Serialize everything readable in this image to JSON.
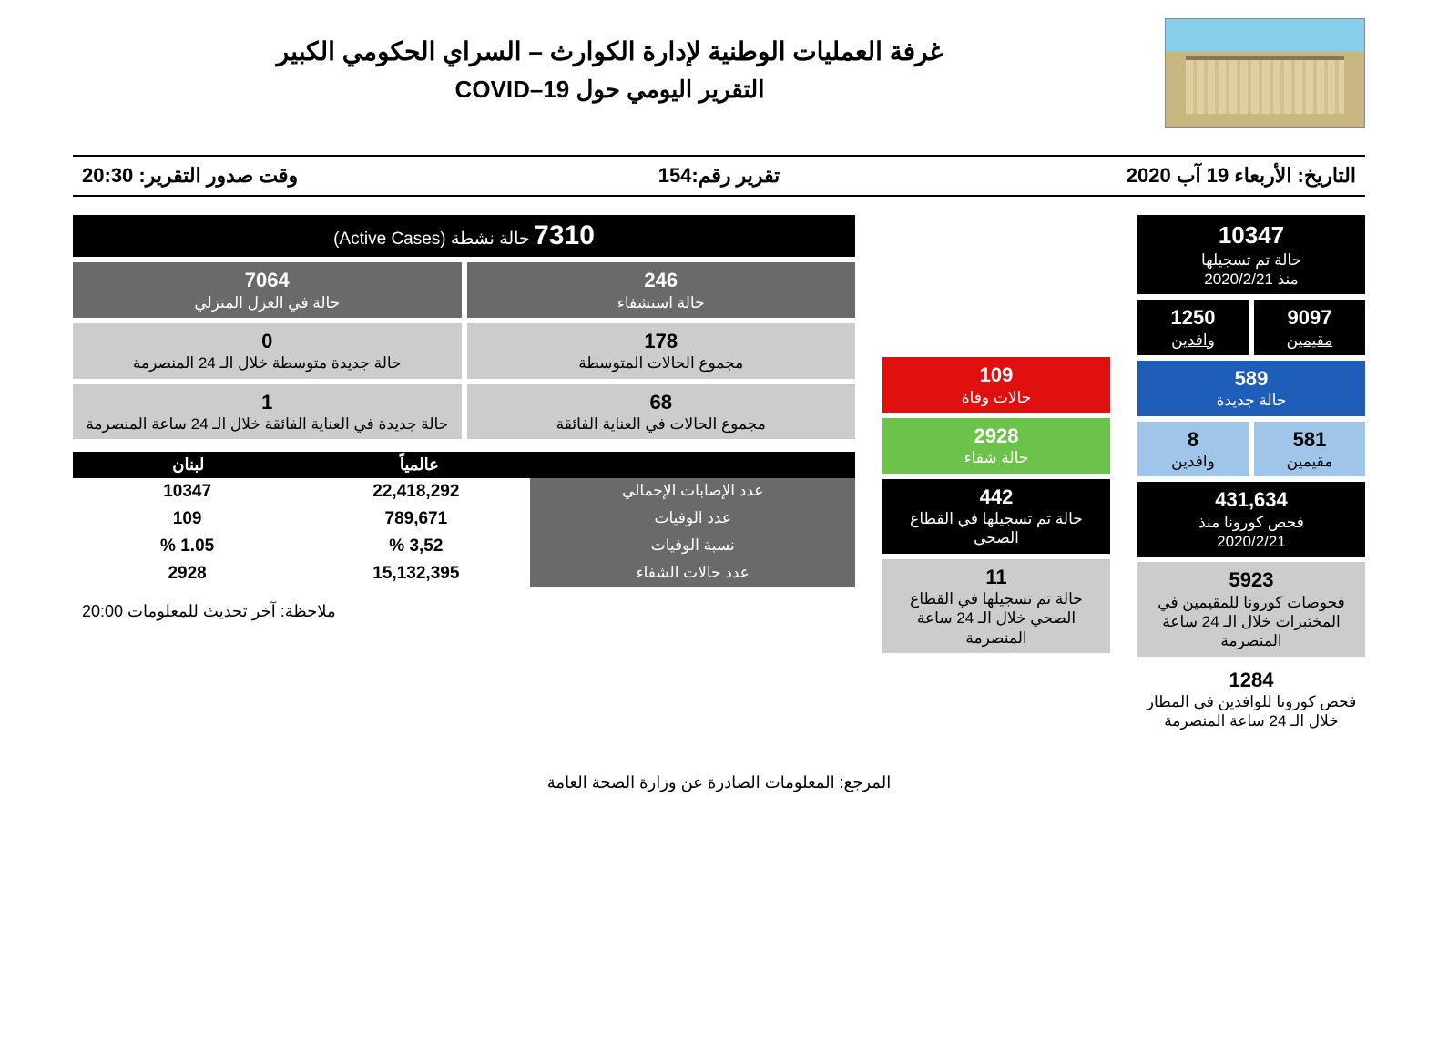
{
  "header": {
    "title1": "غرفة العمليات الوطنية لإدارة الكوارث – السراي الحكومي الكبير",
    "title2": "التقرير اليومي حول COVID–19"
  },
  "meta": {
    "date_label": "التاريخ: الأربعاء 19 آب 2020",
    "report_no": "تقرير رقم:154",
    "issue_time": "وقت صدور التقرير: 20:30"
  },
  "right_col": {
    "total": {
      "value": "10347",
      "label1": "حالة تم تسجيلها",
      "label2": "منذ 2020/2/21"
    },
    "res_incoming": {
      "residents_val": "9097",
      "residents_lbl": "مقيمين",
      "incoming_val": "1250",
      "incoming_lbl": "وافدين"
    },
    "new_cases": {
      "value": "589",
      "label": "حالة جديدة"
    },
    "new_split": {
      "residents_val": "581",
      "residents_lbl": "مقيمين",
      "incoming_val": "8",
      "incoming_lbl": "وافدين"
    },
    "tests_total": {
      "line1": "431,634",
      "line2": "فحص كورونا منذ",
      "line3": "2020/2/21"
    },
    "tests_res_24": {
      "value": "5923",
      "label": "فحوصات كورونا للمقيمين في المختبرات خلال الـ 24 ساعة المنصرمة"
    },
    "tests_inc_24": {
      "value": "1284",
      "label": "فحص كورونا للوافدين في المطار خلال الـ 24 ساعة المنصرمة"
    }
  },
  "mid_col": {
    "deaths": {
      "value": "109",
      "label": "حالات وفاة"
    },
    "recovered": {
      "value": "2928",
      "label": "حالة شفاء"
    },
    "hc_total": {
      "value": "442",
      "label": "حالة تم تسجيلها في القطاع الصحي"
    },
    "hc_24": {
      "value": "11",
      "label": "حالة تم تسجيلها في القطاع الصحي خلال الـ 24 ساعة المنصرمة"
    }
  },
  "left_col": {
    "active": {
      "value": "7310",
      "label": "حالة نشطة (Active Cases)"
    },
    "hospitalized": {
      "value": "246",
      "label": "حالة استشفاء"
    },
    "home_iso": {
      "value": "7064",
      "label": "حالة في العزل المنزلي"
    },
    "moderate_total": {
      "value": "178",
      "label": "مجموع الحالات المتوسطة"
    },
    "moderate_24": {
      "value": "0",
      "label": "حالة جديدة متوسطة خلال الـ 24 المنصرمة"
    },
    "icu_total": {
      "value": "68",
      "label": "مجموع الحالات في العناية الفائقة"
    },
    "icu_24": {
      "value": "1",
      "label": "حالة جديدة في العناية الفائقة خلال الـ 24 ساعة المنصرمة"
    }
  },
  "compare": {
    "head_world": "عالمياً",
    "head_leb": "لبنان",
    "rows": [
      {
        "label": "عدد الإصابات الإجمالي",
        "world": "22,418,292",
        "leb": "10347"
      },
      {
        "label": "عدد الوفيات",
        "world": "789,671",
        "leb": "109"
      },
      {
        "label": "نسبة الوفيات",
        "world": "3,52 %",
        "leb": "1.05 %"
      },
      {
        "label": "عدد حالات الشفاء",
        "world": "15,132,395",
        "leb": "2928"
      }
    ]
  },
  "footer": {
    "note": "ملاحظة: آخر تحديث للمعلومات 20:00",
    "source": "المرجع: المعلومات الصادرة عن وزارة الصحة العامة"
  },
  "colors": {
    "black": "#000000",
    "blue": "#1e5eb8",
    "lightblue": "#9fc5e8",
    "red": "#e01010",
    "green": "#6cc24a",
    "darkgray": "#6a6a6a",
    "lightgray": "#cccccc",
    "white": "#ffffff"
  }
}
